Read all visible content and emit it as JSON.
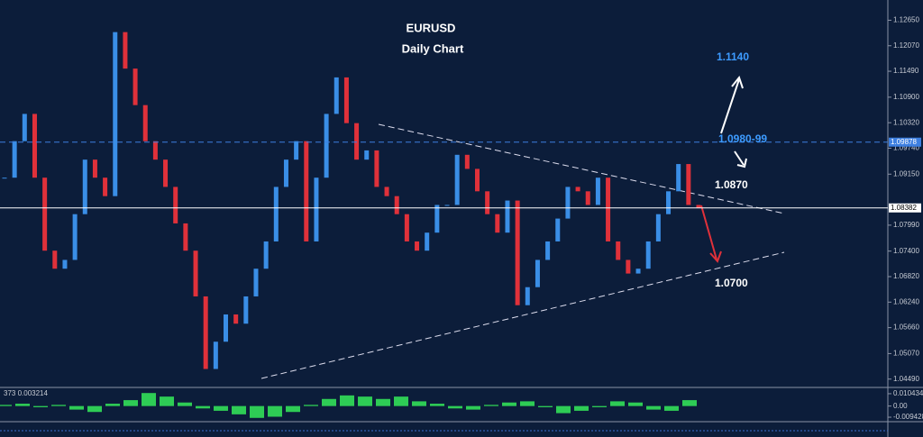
{
  "chart_data": [
    {
      "type": "candlestick",
      "title": "EURUSD",
      "subtitle": "Daily Chart",
      "values": [
        1.0907,
        1.099,
        1.1052,
        1.0907,
        1.0741,
        1.07,
        1.072,
        1.0824,
        1.0948,
        1.0907,
        1.0865,
        1.1238,
        1.1155,
        1.1072,
        1.099,
        1.0948,
        1.0886,
        1.0803,
        1.0741,
        1.0637,
        1.0472,
        1.0534,
        1.0596,
        1.0575,
        1.0637,
        1.07,
        1.0762,
        1.0886,
        1.0948,
        1.099,
        1.0762,
        1.0907,
        1.1052,
        1.1135,
        1.1031,
        1.0948,
        1.0969,
        1.0886,
        1.0865,
        1.0824,
        1.0762,
        1.0741,
        1.0782,
        1.0845,
        1.0845,
        1.0959,
        1.0927,
        1.0876,
        1.0824,
        1.0782,
        1.0855,
        1.0617,
        1.0658,
        1.072,
        1.0762,
        1.0814,
        1.0886,
        1.0876,
        1.0845,
        1.0907,
        1.0762,
        1.072,
        1.0689,
        1.07,
        1.0762,
        1.0824,
        1.0876,
        1.0938,
        1.0845,
        1.0838
      ],
      "up_color": "#3a8ee6",
      "down_color": "#e0313a",
      "ylim": [
        1.043,
        1.1311
      ],
      "yticks": [
        {
          "value": 1.1265,
          "label": "1.12650"
        },
        {
          "value": 1.1207,
          "label": "1.12070"
        },
        {
          "value": 1.1149,
          "label": "1.11490"
        },
        {
          "value": 1.109,
          "label": "1.10900"
        },
        {
          "value": 1.1032,
          "label": "1.10320"
        },
        {
          "value": 1.0974,
          "label": "1.09740"
        },
        {
          "value": 1.0915,
          "label": "1.09150"
        },
        {
          "value": 1.0799,
          "label": "1.07990"
        },
        {
          "value": 1.074,
          "label": "1.07400"
        },
        {
          "value": 1.0682,
          "label": "1.06820"
        },
        {
          "value": 1.0624,
          "label": "1.06240"
        },
        {
          "value": 1.0566,
          "label": "1.05660"
        },
        {
          "value": 1.0507,
          "label": "1.05070"
        },
        {
          "value": 1.0449,
          "label": "1.04490"
        }
      ],
      "levels": [
        {
          "value": 1.09878,
          "color": "#3d7fe0"
        },
        {
          "value": 1.08382,
          "color": "#ffffff"
        }
      ],
      "annotations": [
        "1.1140",
        "1.0980-99",
        "1.0870",
        "1.0700"
      ]
    },
    {
      "type": "bar",
      "label": "373 0.003214",
      "color": "#2ecc55",
      "values": [
        0.001,
        0.002,
        -0.001,
        0.001,
        -0.003,
        -0.005,
        0.002,
        0.005,
        0.011,
        0.008,
        0.003,
        -0.002,
        -0.004,
        -0.007,
        -0.01,
        -0.009,
        -0.005,
        0.001,
        0.006,
        0.009,
        0.008,
        0.006,
        0.008,
        0.004,
        0.002,
        -0.002,
        -0.003,
        0.001,
        0.003,
        0.004,
        -0.001,
        -0.006,
        -0.004,
        -0.001,
        0.004,
        0.003,
        -0.003,
        -0.004,
        0.005
      ],
      "ylim": [
        -0.0132,
        0.0142
      ],
      "yticks": [
        0.010434,
        {
          "value": 0,
          "label": "0.00"
        },
        -0.009428
      ]
    }
  ]
}
